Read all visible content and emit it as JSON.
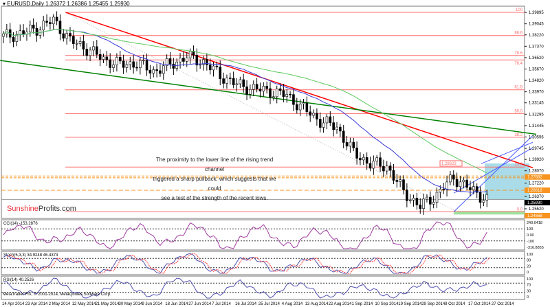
{
  "header": {
    "symbol": "EURUSD,Daily",
    "ohlc": "1.26372 1.26386 1.25455 1.25930"
  },
  "annotation": [
    "The proximity to the lower line of the rising trend channel",
    "triggered a sharp pullback, which suggests that we could",
    "see a test of the strength of the recent lows."
  ],
  "logo": {
    "part1": "Sunshine",
    "part2": "Profits.com"
  },
  "footer": "MetaTrader FIX, © 2001-2014, MetaQuotes Software Corp.",
  "colors": {
    "bull": "#ffffff",
    "bear": "#000000",
    "fib": "#ff6b6b",
    "orange": "#f7931e",
    "channel": "#4a5cff",
    "shade": "#a9dce8",
    "redline": "#ff0000",
    "greenline": "#008000"
  },
  "chart_data": {
    "type": "candlestick",
    "price_axis": [
      "1.39895",
      "1.39045",
      "1.38220",
      "1.37370",
      "1.36520",
      "1.35670",
      "1.34820",
      "1.33970",
      "1.33145",
      "1.32295",
      "1.31445",
      "1.30596",
      "1.29745",
      "1.28920",
      "1.28070",
      "1.27220",
      "1.26370",
      "1.25520"
    ],
    "price_range": [
      1.2463,
      1.399
    ],
    "highlight_labels": [
      {
        "text": "1.27682",
        "price": 1.2768,
        "color": "#f7931e"
      },
      {
        "text": "1.26618",
        "price": 1.2662,
        "color": "#f7931e"
      },
      {
        "text": "1.25930",
        "price": 1.2593,
        "color": "#000000"
      },
      {
        "text": "1.24668",
        "price": 1.2467,
        "color": "#f7931e"
      }
    ],
    "fib_levels": [
      {
        "label": "100",
        "price": 1.399
      },
      {
        "label": "88.6",
        "price": 1.3817
      },
      {
        "label": "78.6",
        "price": 1.3668
      },
      {
        "label": "76.4",
        "price": 1.3635
      },
      {
        "label": "61.8",
        "price": 1.3412
      },
      {
        "label": "50.0",
        "price": 1.3234
      },
      {
        "label": "38.2",
        "price": 1.3057
      },
      {
        "label": "23.6",
        "price": 1.2835
      },
      {
        "label": "0.0",
        "price": 1.2501
      }
    ],
    "box_label": "1.28623",
    "x_labels": [
      "14 Apr 2014",
      "23 Apr 2014",
      "2 May 2014",
      "12 May 2014",
      "21 May 2014",
      "30 May 2014",
      "9 Jun 2014",
      "18 Jun 2014",
      "27 Jun 2014",
      "7 Jul 2014",
      "16 Jul 2014",
      "25 Jul 2014",
      "4 Aug 2014",
      "13 Aug 2014",
      "22 Aug 2014",
      "1 Sep 2014",
      "10 Sep 2014",
      "19 Sep 2014",
      "29 Sep 2014",
      "8 Oct 2014",
      "17 Oct 2014",
      "27 Oct 2014"
    ],
    "weekly_closes": [
      1.381,
      1.383,
      1.387,
      1.393,
      1.378,
      1.372,
      1.364,
      1.36,
      1.361,
      1.355,
      1.36,
      1.366,
      1.362,
      1.352,
      1.345,
      1.342,
      1.34,
      1.337,
      1.327,
      1.318,
      1.313,
      1.294,
      1.286,
      1.284,
      1.265,
      1.254,
      1.263,
      1.276,
      1.267,
      1.2593
    ],
    "indicators": [
      {
        "name": "CCI",
        "label": "CCI(14) -153.2876",
        "scale": [
          "240.0418",
          "100",
          "0.00",
          "-100",
          "-316.8855"
        ]
      },
      {
        "name": "Stoch",
        "label": "Stoch(5,3,3) 34.9248 46.4373",
        "scale": [
          "100",
          "80",
          "20",
          "0"
        ]
      },
      {
        "name": "RSI",
        "label": "RSI(14) 40.2526",
        "scale": [
          "100",
          "70",
          "30",
          "0"
        ]
      }
    ]
  }
}
